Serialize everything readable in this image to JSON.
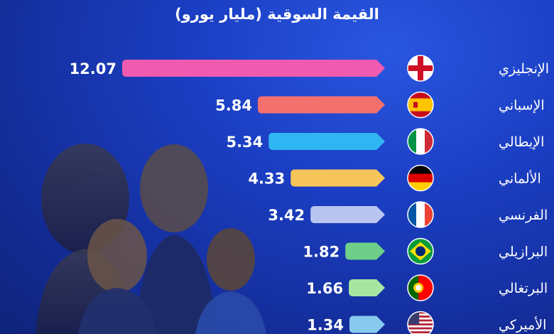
{
  "chart_data": {
    "type": "bar",
    "orientation": "horizontal",
    "title": "القيمة السوقية (مليار يورو)",
    "categories": [
      "الإنجليزي",
      "الإسباني",
      "الإيطالي",
      "الألماني",
      "الفرنسي",
      "البرازيلي",
      "البرتغالي",
      "الأميركي"
    ],
    "values": [
      12.07,
      5.84,
      5.34,
      4.33,
      3.42,
      1.82,
      1.66,
      1.34
    ],
    "value_labels": [
      "12.07",
      "5.84",
      "5.34",
      "4.33",
      "3.42",
      "1.82",
      "1.66",
      "1.34"
    ],
    "bar_colors": [
      "#f05bb0",
      "#f4706d",
      "#2fb6f2",
      "#f7c65a",
      "#b9c4ef",
      "#6fcf8a",
      "#a6e6a0",
      "#88c9ef"
    ],
    "flags": [
      "england-flag-icon",
      "spain-flag-icon",
      "italy-flag-icon",
      "germany-flag-icon",
      "france-flag-icon",
      "brazil-flag-icon",
      "portugal-flag-icon",
      "usa-flag-icon"
    ],
    "xlim": [
      0,
      12.07
    ],
    "grid": false,
    "legend": "none"
  }
}
